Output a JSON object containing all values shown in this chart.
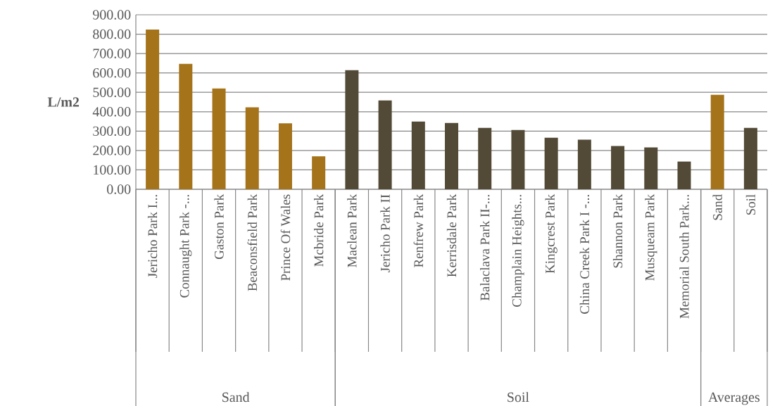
{
  "chart_data": {
    "type": "bar",
    "ylabel": "L/m2",
    "categories": [
      "Jericho Park I...",
      "Connaught Park -...",
      "Gaston Park",
      "Beaconsfield Park",
      "Prince Of Wales",
      "Mcbride Park",
      "Maclean Park",
      "Jericho Park II",
      "Renfrew Park",
      "Kerrisdale Park",
      "Balaclava Park II-...",
      "Champlain Heights...",
      "Kingcrest Park",
      "China Creek Park I -...",
      "Shannon Park",
      "Musqueam Park",
      "Memorial South Park...",
      "Sand",
      "Soil"
    ],
    "values": [
      824,
      647,
      520,
      423,
      340,
      170,
      614,
      458,
      349,
      342,
      317,
      306,
      266,
      256,
      223,
      216,
      143,
      487,
      317
    ],
    "colors": [
      "#a5731a",
      "#a5731a",
      "#a5731a",
      "#a5731a",
      "#a5731a",
      "#a5731a",
      "#524a36",
      "#524a36",
      "#524a36",
      "#524a36",
      "#524a36",
      "#524a36",
      "#524a36",
      "#524a36",
      "#524a36",
      "#524a36",
      "#524a36",
      "#a5731a",
      "#524a36"
    ],
    "ylim": [
      0,
      900
    ],
    "yticks": [
      {
        "value": 0,
        "label": "0.00"
      },
      {
        "value": 100,
        "label": "100.00"
      },
      {
        "value": 200,
        "label": "200.00"
      },
      {
        "value": 300,
        "label": "300.00"
      },
      {
        "value": 400,
        "label": "400.00"
      },
      {
        "value": 500,
        "label": "500.00"
      },
      {
        "value": 600,
        "label": "600.00"
      },
      {
        "value": 700,
        "label": "700.00"
      },
      {
        "value": 800,
        "label": "800.00"
      },
      {
        "value": 900,
        "label": "900.00"
      }
    ],
    "grid": "y",
    "annotations": [
      "Sand",
      "Soil",
      "Averages"
    ]
  }
}
